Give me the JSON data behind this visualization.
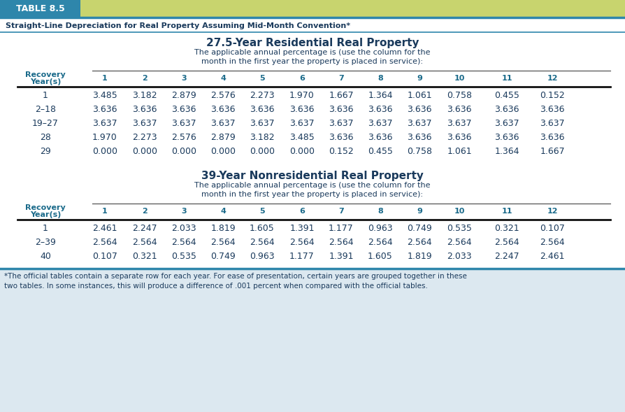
{
  "table_label": "TABLE 8.5",
  "table_label_bg": "#2e86ab",
  "header_bg": "#c8d46e",
  "teal_line_color": "#2e86ab",
  "subtitle": "Straight-Line Depreciation for Real Property Assuming Mid-Month Convention*",
  "section1_title": "27.5-Year Residential Real Property",
  "section1_subtitle": "The applicable annual percentage is (use the column for the\nmonth in the first year the property is placed in service):",
  "section2_title": "39-Year Nonresidential Real Property",
  "section2_subtitle": "The applicable annual percentage is (use the column for the\nmonth in the first year the property is placed in service):",
  "col_headers": [
    "1",
    "2",
    "3",
    "4",
    "5",
    "6",
    "7",
    "8",
    "9",
    "10",
    "11",
    "12"
  ],
  "table1_rows": [
    [
      "1",
      "3.485",
      "3.182",
      "2.879",
      "2.576",
      "2.273",
      "1.970",
      "1.667",
      "1.364",
      "1.061",
      "0.758",
      "0.455",
      "0.152"
    ],
    [
      "2–18",
      "3.636",
      "3.636",
      "3.636",
      "3.636",
      "3.636",
      "3.636",
      "3.636",
      "3.636",
      "3.636",
      "3.636",
      "3.636",
      "3.636"
    ],
    [
      "19–27",
      "3.637",
      "3.637",
      "3.637",
      "3.637",
      "3.637",
      "3.637",
      "3.637",
      "3.637",
      "3.637",
      "3.637",
      "3.637",
      "3.637"
    ],
    [
      "28",
      "1.970",
      "2.273",
      "2.576",
      "2.879",
      "3.182",
      "3.485",
      "3.636",
      "3.636",
      "3.636",
      "3.636",
      "3.636",
      "3.636"
    ],
    [
      "29",
      "0.000",
      "0.000",
      "0.000",
      "0.000",
      "0.000",
      "0.000",
      "0.152",
      "0.455",
      "0.758",
      "1.061",
      "1.364",
      "1.667"
    ]
  ],
  "table2_rows": [
    [
      "1",
      "2.461",
      "2.247",
      "2.033",
      "1.819",
      "1.605",
      "1.391",
      "1.177",
      "0.963",
      "0.749",
      "0.535",
      "0.321",
      "0.107"
    ],
    [
      "2–39",
      "2.564",
      "2.564",
      "2.564",
      "2.564",
      "2.564",
      "2.564",
      "2.564",
      "2.564",
      "2.564",
      "2.564",
      "2.564",
      "2.564"
    ],
    [
      "40",
      "0.107",
      "0.321",
      "0.535",
      "0.749",
      "0.963",
      "1.177",
      "1.391",
      "1.605",
      "1.819",
      "2.033",
      "2.247",
      "2.461"
    ]
  ],
  "footnote": "*The official tables contain a separate row for each year. For ease of presentation, certain years are grouped together in these\ntwo tables. In some instances, this will produce a difference of .001 percent when compared with the official tables.",
  "text_color": "#1a3a5c",
  "header_text_color": "#1a6a8a",
  "data_text_color": "#1a3a5c",
  "bg_color": "#ffffff",
  "footnote_bg": "#dce8f0"
}
